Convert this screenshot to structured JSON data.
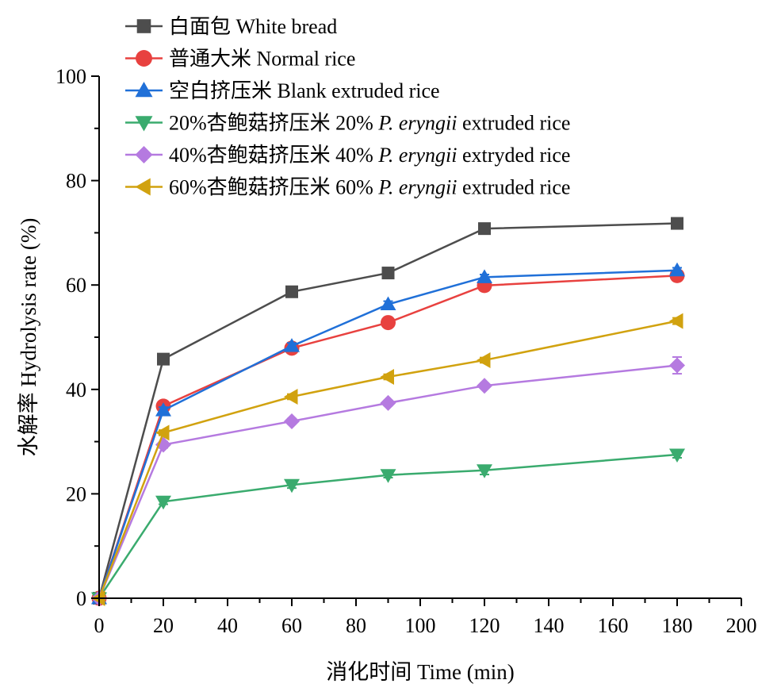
{
  "chart_data": {
    "type": "line",
    "xlabel": "消化时间 Time (min)",
    "ylabel": "水解率 Hydrolysis rate (%)",
    "xlim": [
      0,
      200
    ],
    "ylim": [
      0,
      100
    ],
    "x_ticks": [
      "0",
      "20",
      "40",
      "60",
      "80",
      "100",
      "120",
      "140",
      "160",
      "180",
      "200"
    ],
    "y_ticks": [
      "0",
      "20",
      "40",
      "60",
      "80",
      "100"
    ],
    "grid": false,
    "legend_position": "top-left",
    "x": [
      0,
      20,
      60,
      90,
      120,
      180
    ],
    "series": [
      {
        "name": "白面包 White bread",
        "label_parts": [
          {
            "text": "白面包 White bread",
            "italic": false
          }
        ],
        "color": "#4d4d4d",
        "marker": "square",
        "values": [
          0,
          45.8,
          58.7,
          62.3,
          70.8,
          71.8
        ],
        "errors": [
          0,
          0.5,
          0.5,
          0.5,
          0.6,
          0.5
        ]
      },
      {
        "name": "普通大米 Normal rice",
        "label_parts": [
          {
            "text": "普通大米 Normal rice",
            "italic": false
          }
        ],
        "color": "#e8413f",
        "marker": "circle",
        "values": [
          0,
          36.8,
          47.9,
          52.8,
          59.9,
          61.8
        ],
        "errors": [
          0,
          0.6,
          0.6,
          0.5,
          0.6,
          0.6
        ]
      },
      {
        "name": "空白挤压米 Blank extruded rice",
        "label_parts": [
          {
            "text": "空白挤压米 Blank extruded rice",
            "italic": false
          }
        ],
        "color": "#2070d8",
        "marker": "triangle-up",
        "values": [
          0,
          36.0,
          48.3,
          56.3,
          61.5,
          62.8
        ],
        "errors": [
          0,
          0.6,
          0.6,
          0.6,
          0.5,
          0.5
        ]
      },
      {
        "name": "20%杏鲍菇挤压米 20% P. eryngii extruded rice",
        "label_parts": [
          {
            "text": "20%杏鲍菇挤压米 20% ",
            "italic": false
          },
          {
            "text": "P. eryngii",
            "italic": true
          },
          {
            "text": " extruded rice",
            "italic": false
          }
        ],
        "color": "#3aab6e",
        "marker": "triangle-down",
        "values": [
          0,
          18.5,
          21.7,
          23.6,
          24.5,
          27.5
        ],
        "errors": [
          0,
          0.5,
          0.6,
          0.5,
          0.8,
          0.6
        ]
      },
      {
        "name": "40%杏鲍菇挤压米 40% P. eryngii extryded rice",
        "label_parts": [
          {
            "text": "40%杏鲍菇挤压米 40% ",
            "italic": false
          },
          {
            "text": "P. eryngii",
            "italic": true
          },
          {
            "text": " extryded rice",
            "italic": false
          }
        ],
        "color": "#b57ae0",
        "marker": "diamond",
        "values": [
          0,
          29.4,
          33.9,
          37.4,
          40.7,
          44.6
        ],
        "errors": [
          0,
          0.6,
          0.5,
          0.5,
          0.5,
          1.6
        ]
      },
      {
        "name": "60%杏鲍菇挤压米 60% P. eryngii extruded rice",
        "label_parts": [
          {
            "text": "60%杏鲍菇挤压米 60% ",
            "italic": false
          },
          {
            "text": "P. eryngii",
            "italic": true
          },
          {
            "text": " extruded rice",
            "italic": false
          }
        ],
        "color": "#d1a20f",
        "marker": "triangle-left",
        "values": [
          0,
          31.7,
          38.6,
          42.4,
          45.6,
          53.1
        ],
        "errors": [
          0,
          0.5,
          0.5,
          0.5,
          0.5,
          0.6
        ]
      }
    ]
  }
}
